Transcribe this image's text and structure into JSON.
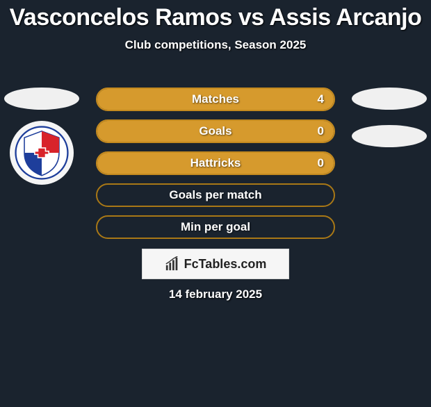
{
  "title": "Vasconcelos Ramos vs Assis Arcanjo",
  "subtitle": "Club competitions, Season 2025",
  "date": "14 february 2025",
  "brand": "FcTables.com",
  "colors": {
    "background": "#1a232e",
    "bar_fill": "#d69a2d",
    "bar_border": "#c48a1f",
    "bar_unfilled_border": "#a97816",
    "photo_ellipse": "#f0f0f0",
    "brand_box_bg": "#f6f6f6",
    "brand_text": "#222222",
    "text": "#ffffff"
  },
  "bars": [
    {
      "label": "Matches",
      "value_left": null,
      "value_right": "4",
      "filled": true
    },
    {
      "label": "Goals",
      "value_left": null,
      "value_right": "0",
      "filled": true
    },
    {
      "label": "Hattricks",
      "value_left": null,
      "value_right": "0",
      "filled": true
    },
    {
      "label": "Goals per match",
      "value_left": null,
      "value_right": null,
      "filled": false
    },
    {
      "label": "Min per goal",
      "value_left": null,
      "value_right": null,
      "filled": false
    }
  ],
  "club_badge": {
    "name": "Esporte Clube Bahia",
    "primary": "#1e3e9b",
    "secondary": "#d8232a",
    "white": "#ffffff"
  }
}
